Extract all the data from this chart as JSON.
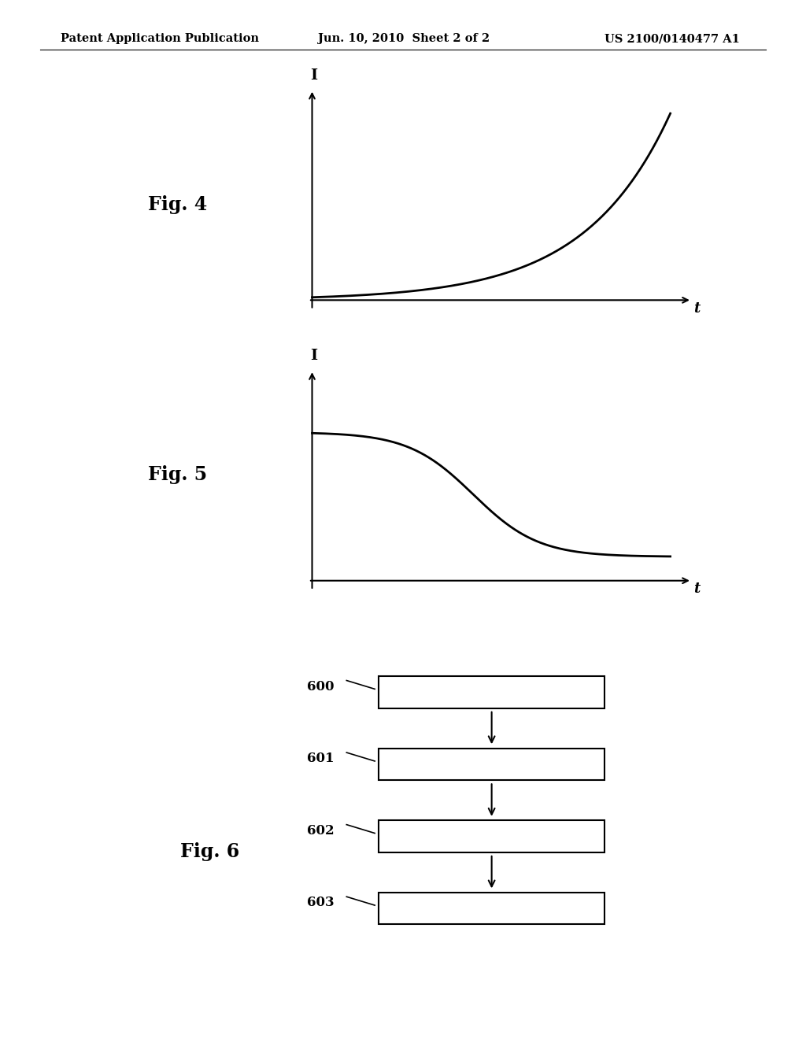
{
  "background_color": "#ffffff",
  "header_left": "Patent Application Publication",
  "header_center": "Jun. 10, 2010  Sheet 2 of 2",
  "header_right": "US 2100/0140477 A1",
  "header_fontsize": 10.5,
  "fig4_label": "Fig. 4",
  "fig5_label": "Fig. 5",
  "fig6_label": "Fig. 6",
  "fig_label_fontsize": 17,
  "axis_label_I": "I",
  "axis_label_t": "t",
  "flowchart_boxes": [
    "600",
    "601",
    "602",
    "603"
  ]
}
